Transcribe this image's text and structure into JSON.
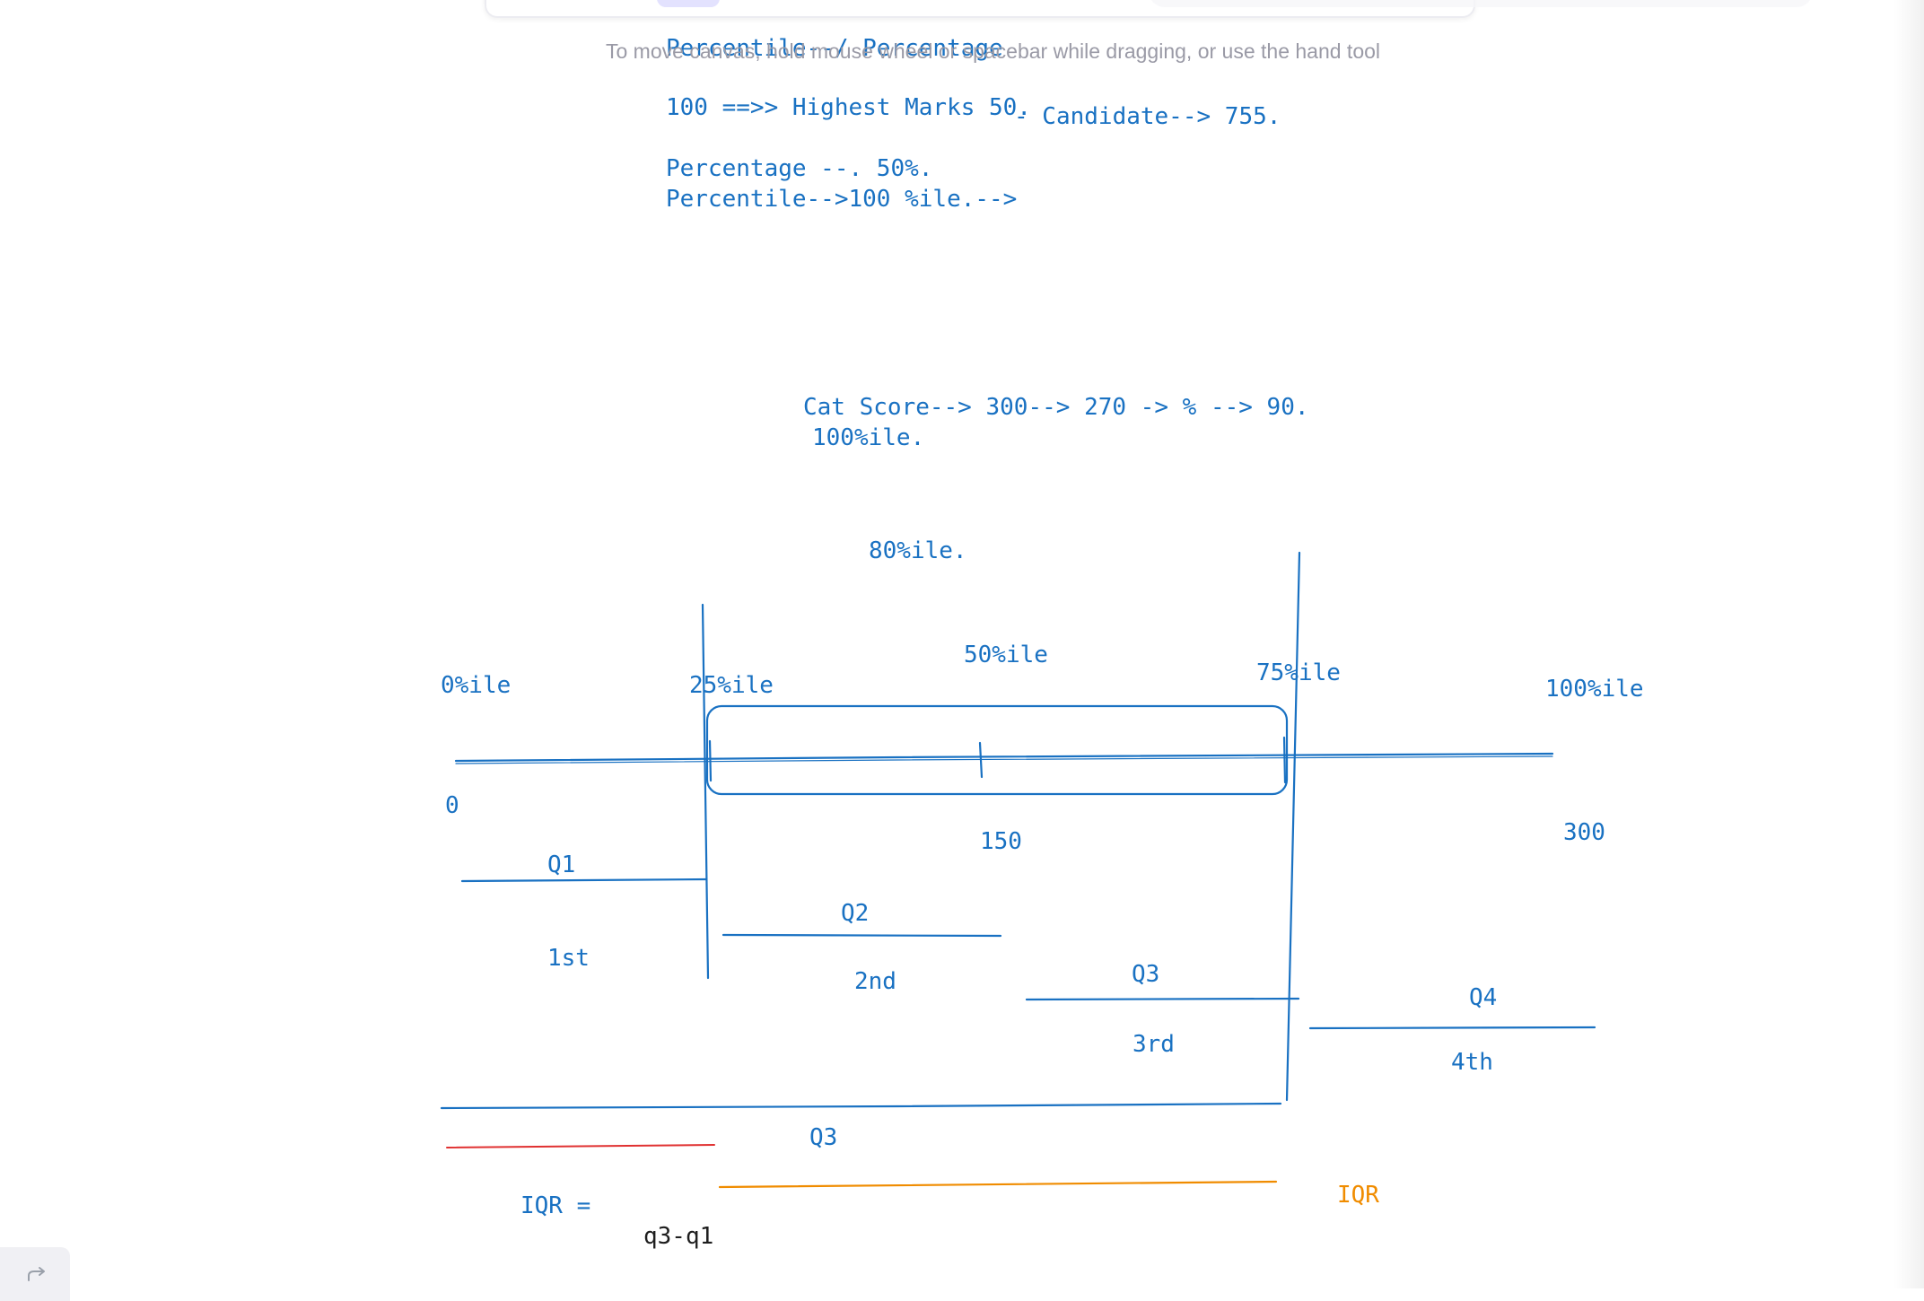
{
  "app": {
    "hint": "To move canvas, hold mouse wheel or spacebar while dragging, or use the hand tool"
  },
  "colors": {
    "ink_blue": "#1971c2",
    "ink_red": "#e03131",
    "ink_orange": "#f08c00",
    "ink_black": "#1e1e1e",
    "hint_gray": "#9a9aa6"
  },
  "notes": {
    "title": "Percentile--/ Percentage",
    "line1": "100 ==>> Highest Marks 50.",
    "line1_side": "- Candidate--> 755.",
    "line2": "Percentage --. 50%.",
    "line3": "Percentile-->100 %ile.-->",
    "cat_line1": "Cat Score--> 300--> 270 -> % --> 90.",
    "cat_line2": "100%ile.",
    "pct_80": "80%ile."
  },
  "diagram": {
    "p0": "0%ile",
    "p25": "25%ile",
    "p50": "50%ile",
    "p75": "75%ile",
    "p100": "100%ile",
    "v0": "0",
    "v150": "150",
    "v300": "300",
    "q1": "Q1",
    "q1_rank": "1st",
    "q2": "Q2",
    "q2_rank": "2nd",
    "q3": "Q3",
    "q3_rank": "3rd",
    "q4": "Q4",
    "q4_rank": "4th",
    "q3_bottom": "Q3",
    "iqr_label": "IQR =",
    "iqr_formula": "q3-q1",
    "iqr_tag": "IQR"
  }
}
